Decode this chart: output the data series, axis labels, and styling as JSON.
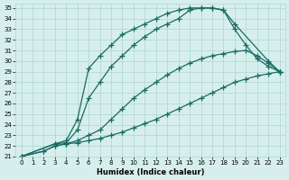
{
  "xlabel": "Humidex (Indice chaleur)",
  "bg_color": "#d6efed",
  "grid_color": "#aed4d0",
  "line_color": "#1a6b62",
  "line_width": 0.9,
  "marker": "+",
  "marker_size": 4,
  "marker_edge_width": 0.9,
  "lines": [
    {
      "x": [
        0,
        2,
        3,
        4,
        5,
        6,
        7,
        8,
        9,
        10,
        11,
        12,
        13,
        14,
        15,
        16,
        17,
        18,
        19,
        20,
        21,
        22,
        23
      ],
      "y": [
        21,
        21.5,
        22.0,
        22.2,
        22.3,
        22.5,
        22.7,
        23.0,
        23.3,
        23.7,
        24.1,
        24.5,
        25.0,
        25.5,
        26.0,
        26.5,
        27.0,
        27.5,
        28.0,
        28.3,
        28.6,
        28.8,
        29.0
      ]
    },
    {
      "x": [
        0,
        2,
        3,
        4,
        5,
        6,
        7,
        8,
        9,
        10,
        11,
        12,
        13,
        14,
        15,
        16,
        17,
        18,
        19,
        20,
        21,
        22,
        23
      ],
      "y": [
        21,
        21.5,
        22.0,
        22.2,
        22.5,
        23.0,
        23.5,
        24.5,
        25.5,
        26.5,
        27.3,
        28.0,
        28.7,
        29.3,
        29.8,
        30.2,
        30.5,
        30.7,
        30.9,
        31.0,
        30.5,
        29.8,
        29.0
      ]
    },
    {
      "x": [
        0,
        3,
        4,
        5,
        6,
        7,
        8,
        9,
        10,
        11,
        12,
        13,
        14,
        15,
        16,
        17,
        18,
        19,
        20,
        21,
        22,
        23
      ],
      "y": [
        21,
        22.2,
        22.3,
        23.5,
        26.5,
        28.0,
        29.5,
        30.5,
        31.5,
        32.3,
        33.0,
        33.5,
        34.0,
        34.8,
        35.0,
        35.0,
        34.8,
        33.0,
        31.5,
        30.2,
        29.5,
        29.0
      ]
    },
    {
      "x": [
        0,
        3,
        4,
        5,
        6,
        7,
        8,
        9,
        10,
        11,
        12,
        13,
        14,
        15,
        16,
        17,
        18,
        19,
        22,
        23
      ],
      "y": [
        21,
        22.2,
        22.5,
        24.5,
        29.3,
        30.5,
        31.5,
        32.5,
        33.0,
        33.5,
        34.0,
        34.5,
        34.8,
        35.0,
        35.0,
        35.0,
        34.8,
        33.5,
        30.0,
        29.0
      ]
    }
  ],
  "xlim": [
    -0.5,
    23.5
  ],
  "ylim": [
    21,
    35.4
  ],
  "xticks": [
    0,
    1,
    2,
    3,
    4,
    5,
    6,
    7,
    8,
    9,
    10,
    11,
    12,
    13,
    14,
    15,
    16,
    17,
    18,
    19,
    20,
    21,
    22,
    23
  ],
  "yticks": [
    21,
    22,
    23,
    24,
    25,
    26,
    27,
    28,
    29,
    30,
    31,
    32,
    33,
    34,
    35
  ],
  "xlabel_fontsize": 6,
  "tick_fontsize": 5
}
